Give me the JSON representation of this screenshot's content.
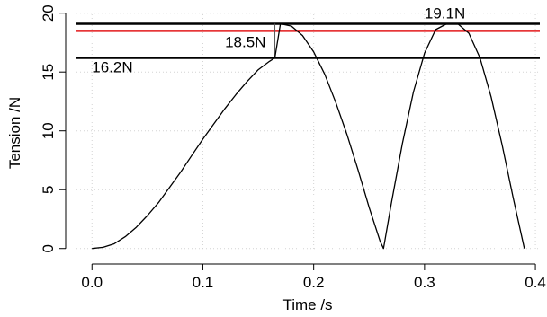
{
  "chart_data": {
    "type": "line",
    "title": "",
    "xlabel": "Time /s",
    "ylabel": "Tension /N",
    "xlim": [
      -0.014,
      0.404
    ],
    "ylim": [
      -0.25,
      19.9
    ],
    "grid": true,
    "x_ticks": [
      0.0,
      0.1,
      0.2,
      0.3,
      0.4
    ],
    "x_tick_labels": [
      "0.0",
      "0.1",
      "0.2",
      "0.3",
      "0.4"
    ],
    "y_ticks": [
      0,
      5,
      10,
      15,
      20
    ],
    "y_tick_labels": [
      "0",
      "5",
      "10",
      "15",
      "20"
    ],
    "series": [
      {
        "color": "#000000",
        "x": [
          0.0,
          0.01,
          0.02,
          0.03,
          0.04,
          0.05,
          0.06,
          0.07,
          0.08,
          0.09,
          0.1,
          0.11,
          0.12,
          0.13,
          0.14,
          0.15,
          0.16,
          0.165,
          0.17,
          0.18,
          0.19,
          0.2,
          0.21,
          0.22,
          0.23,
          0.24,
          0.25,
          0.26,
          0.263,
          0.27,
          0.28,
          0.29,
          0.3,
          0.31,
          0.32,
          0.33,
          0.34,
          0.35,
          0.36,
          0.37,
          0.38,
          0.39
        ],
        "y": [
          0.0,
          0.1,
          0.4,
          1.0,
          1.8,
          2.8,
          3.9,
          5.2,
          6.5,
          7.9,
          9.3,
          10.6,
          11.9,
          13.1,
          14.2,
          15.2,
          15.9,
          16.2,
          19.1,
          18.9,
          18.1,
          16.7,
          14.8,
          12.4,
          9.7,
          6.7,
          3.5,
          0.6,
          0.0,
          3.8,
          8.9,
          13.3,
          16.6,
          18.6,
          19.1,
          19.1,
          18.3,
          16.2,
          12.9,
          8.8,
          4.3,
          0.0
        ]
      }
    ],
    "hlines": [
      {
        "y": 19.1,
        "color": "#000000",
        "label": "19.1N",
        "label_x": 0.3
      },
      {
        "y": 18.5,
        "color": "#e31a1c",
        "label": "18.5N",
        "label_x": 0.12
      },
      {
        "y": 16.2,
        "color": "#000000",
        "label": "16.2N",
        "label_x": 0.0
      }
    ],
    "vlines": [
      {
        "x": 0.165,
        "y_from": 16.2,
        "y_to": 19.1,
        "color": "#555555"
      }
    ]
  }
}
